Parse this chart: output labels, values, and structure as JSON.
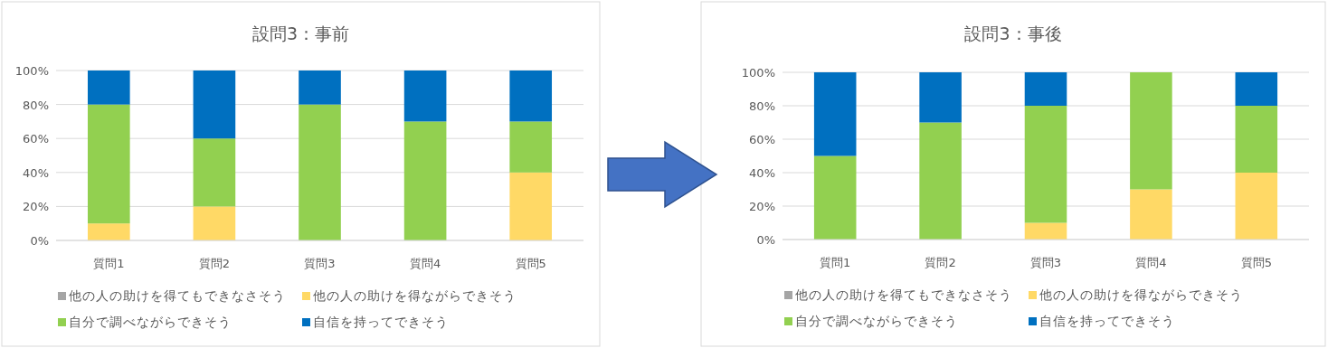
{
  "chart_data": [
    {
      "type": "bar",
      "title": "設問3：事前",
      "stacked": true,
      "grid": "y",
      "legend": "bottom",
      "categories": [
        "質問1",
        "質問2",
        "質問3",
        "質問4",
        "質問5"
      ],
      "ylim": [
        0,
        100
      ],
      "yticks": [
        {
          "value": 0,
          "label": "0%"
        },
        {
          "value": 20,
          "label": "20%"
        },
        {
          "value": 40,
          "label": "40%"
        },
        {
          "value": 60,
          "label": "60%"
        },
        {
          "value": 80,
          "label": "80%"
        },
        {
          "value": 100,
          "label": "100%"
        }
      ],
      "series": [
        {
          "name": "他の人の助けを得てもできなさそう",
          "color": "#a5a5a5",
          "values": [
            0,
            0,
            0,
            0,
            0
          ]
        },
        {
          "name": "他の人の助けを得ながらできそう",
          "color": "#ffd966",
          "values": [
            10,
            20,
            0,
            0,
            40
          ]
        },
        {
          "name": "自分で調べながらできそう",
          "color": "#92d050",
          "values": [
            70,
            40,
            80,
            70,
            30
          ]
        },
        {
          "name": "自信を持ってできそう",
          "color": "#0070c0",
          "values": [
            20,
            40,
            20,
            30,
            30
          ]
        }
      ]
    },
    {
      "type": "bar",
      "title": "設問3：事後",
      "stacked": true,
      "grid": "y",
      "legend": "bottom",
      "categories": [
        "質問1",
        "質問2",
        "質問3",
        "質問4",
        "質問5"
      ],
      "ylim": [
        0,
        100
      ],
      "yticks": [
        {
          "value": 0,
          "label": "0%"
        },
        {
          "value": 20,
          "label": "20%"
        },
        {
          "value": 40,
          "label": "40%"
        },
        {
          "value": 60,
          "label": "60%"
        },
        {
          "value": 80,
          "label": "80%"
        },
        {
          "value": 100,
          "label": "100%"
        }
      ],
      "series": [
        {
          "name": "他の人の助けを得てもできなさそう",
          "color": "#a5a5a5",
          "values": [
            0,
            0,
            0,
            0,
            0
          ]
        },
        {
          "name": "他の人の助けを得ながらできそう",
          "color": "#ffd966",
          "values": [
            0,
            0,
            10,
            30,
            40
          ]
        },
        {
          "name": "自分で調べながらできそう",
          "color": "#92d050",
          "values": [
            50,
            70,
            70,
            70,
            40
          ]
        },
        {
          "name": "自信を持ってできそう",
          "color": "#0070c0",
          "values": [
            50,
            30,
            20,
            0,
            20
          ]
        }
      ]
    }
  ]
}
